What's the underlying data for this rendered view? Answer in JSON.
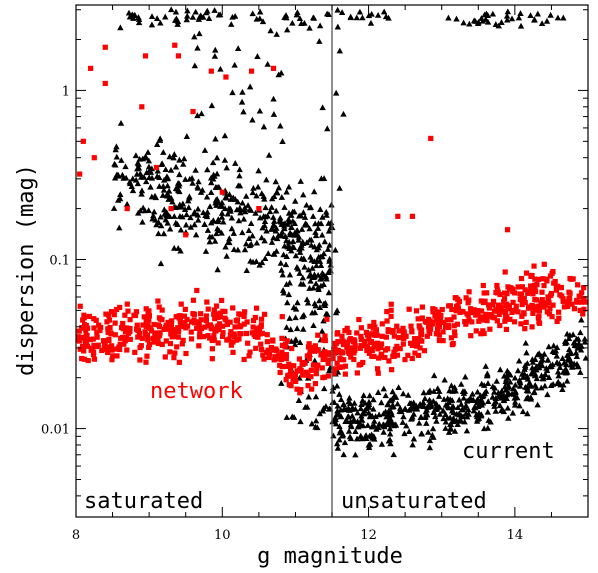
{
  "chart_data": {
    "type": "scatter",
    "title": "",
    "xlabel": "g magnitude",
    "ylabel": "dispersion (mag)",
    "xlim": [
      8,
      15
    ],
    "ylim": [
      0.003,
      3.2
    ],
    "yscale": "log",
    "x_ticks": [
      8,
      10,
      12,
      14
    ],
    "x_tick_labels": [
      "8",
      "10",
      "12",
      "14"
    ],
    "y_ticks": [
      0.01,
      0.1,
      1
    ],
    "y_tick_labels": [
      "0.01",
      "0.1",
      "1"
    ],
    "grid": false,
    "vline_x": 11.5,
    "annotations": {
      "saturated": "saturated",
      "unsaturated": "unsaturated",
      "network": "network",
      "current": "current"
    },
    "series": [
      {
        "name": "network",
        "marker": "square",
        "color": "#ff0000",
        "trend": [
          [
            8.0,
            0.035
          ],
          [
            8.5,
            0.036
          ],
          [
            9.0,
            0.038
          ],
          [
            9.5,
            0.04
          ],
          [
            10.0,
            0.04
          ],
          [
            10.5,
            0.036
          ],
          [
            10.8,
            0.028
          ],
          [
            11.0,
            0.022
          ],
          [
            11.3,
            0.025
          ],
          [
            11.5,
            0.03
          ],
          [
            12.0,
            0.03
          ],
          [
            12.5,
            0.035
          ],
          [
            13.0,
            0.042
          ],
          [
            13.5,
            0.048
          ],
          [
            14.0,
            0.055
          ],
          [
            14.5,
            0.06
          ],
          [
            15.0,
            0.063
          ]
        ],
        "outliers": [
          [
            8.05,
            0.32
          ],
          [
            8.1,
            0.5
          ],
          [
            8.2,
            1.35
          ],
          [
            8.25,
            0.4
          ],
          [
            8.4,
            1.1
          ],
          [
            8.4,
            1.8
          ],
          [
            8.9,
            0.8
          ],
          [
            8.95,
            1.6
          ],
          [
            9.35,
            1.85
          ],
          [
            9.4,
            1.6
          ],
          [
            9.6,
            0.75
          ],
          [
            9.85,
            1.3
          ],
          [
            10.05,
            1.2
          ],
          [
            10.4,
            1.3
          ],
          [
            10.7,
            1.35
          ],
          [
            9.3,
            0.2
          ],
          [
            9.5,
            0.14
          ],
          [
            10.0,
            0.25
          ],
          [
            10.5,
            0.2
          ],
          [
            12.4,
            0.18
          ],
          [
            12.6,
            0.18
          ],
          [
            12.85,
            0.52
          ],
          [
            13.9,
            0.15
          ],
          [
            8.7,
            0.2
          ],
          [
            9.1,
            0.35
          ]
        ]
      },
      {
        "name": "current",
        "marker": "triangle",
        "color": "#000000",
        "trend": [
          [
            11.5,
            0.011
          ],
          [
            12.0,
            0.011
          ],
          [
            12.5,
            0.012
          ],
          [
            13.0,
            0.013
          ],
          [
            13.5,
            0.014
          ],
          [
            14.0,
            0.017
          ],
          [
            14.5,
            0.023
          ],
          [
            15.0,
            0.032
          ]
        ],
        "saturated_cloud": [
          [
            8.5,
            0.3
          ],
          [
            9.0,
            0.25
          ],
          [
            9.5,
            0.22
          ],
          [
            10.0,
            0.2
          ],
          [
            10.5,
            0.18
          ],
          [
            11.0,
            0.14
          ],
          [
            11.4,
            0.1
          ]
        ],
        "top_band": [
          [
            8.5,
            2.8
          ],
          [
            9.0,
            2.7
          ],
          [
            9.5,
            2.75
          ],
          [
            10.0,
            2.65
          ],
          [
            10.5,
            2.6
          ],
          [
            11.0,
            2.6
          ],
          [
            11.5,
            2.7
          ],
          [
            12.0,
            2.8
          ],
          [
            13.5,
            2.7
          ],
          [
            14.5,
            2.6
          ]
        ]
      }
    ]
  }
}
